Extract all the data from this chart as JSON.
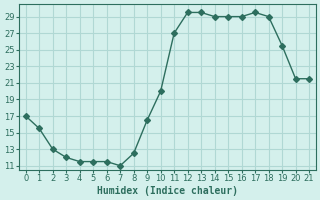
{
  "x": [
    0,
    1,
    2,
    3,
    4,
    5,
    6,
    7,
    8,
    9,
    10,
    11,
    12,
    13,
    14,
    15,
    16,
    17,
    18,
    19,
    20,
    21
  ],
  "y": [
    17,
    15.5,
    13,
    12,
    11.5,
    11.5,
    11.5,
    11,
    12.5,
    16.5,
    20,
    27,
    29.5,
    29.5,
    29,
    29,
    29,
    29.5,
    29,
    25.5,
    21.5,
    21.5
  ],
  "line_color": "#2d6e5e",
  "marker": "D",
  "marker_size": 3,
  "bg_color": "#d4f0ec",
  "grid_color": "#b0d8d4",
  "xlabel": "Humidex (Indice chaleur)",
  "xlabel_color": "#2d6e5e",
  "tick_color": "#2d6e5e",
  "yticks": [
    11,
    13,
    15,
    17,
    19,
    21,
    23,
    25,
    27,
    29
  ],
  "xticks": [
    0,
    1,
    2,
    3,
    4,
    5,
    6,
    7,
    8,
    9,
    10,
    11,
    12,
    13,
    14,
    15,
    16,
    17,
    18,
    19,
    20,
    21
  ],
  "ylim": [
    10.5,
    30.5
  ],
  "xlim": [
    -0.5,
    21.5
  ]
}
